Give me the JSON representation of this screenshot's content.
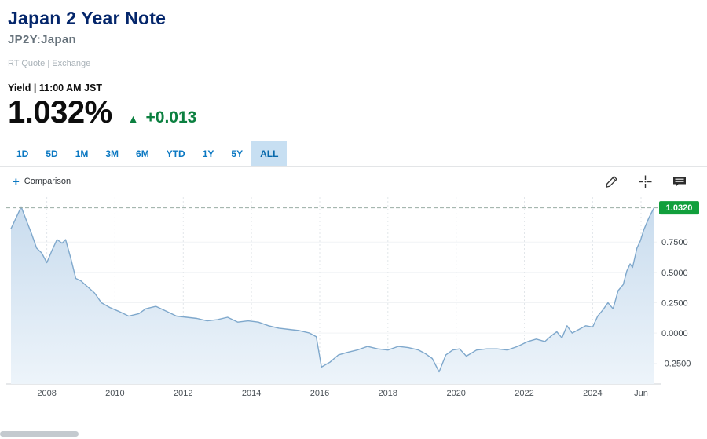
{
  "header": {
    "title": "Japan 2 Year Note",
    "symbol": "JP2Y:Japan",
    "rt_quote": "RT Quote | Exchange",
    "field_label": "Yield | 11:00 AM JST",
    "value": "1.032%",
    "change": "+0.013",
    "direction": "up",
    "up_triangle": "▲"
  },
  "colors": {
    "title_navy": "#04266b",
    "up_green": "#0c8040",
    "tab_blue": "#0b78c2",
    "active_tab_bg": "#c7dff2"
  },
  "range_tabs": {
    "items": [
      "1D",
      "5D",
      "1M",
      "3M",
      "6M",
      "YTD",
      "1Y",
      "5Y",
      "ALL"
    ],
    "active": "ALL"
  },
  "chart_toolbar": {
    "comparison_plus": "+",
    "comparison_label": "Comparison",
    "icons": [
      "draw-icon",
      "crosshair-icon",
      "annotation-icon"
    ]
  },
  "chart_data": {
    "type": "area",
    "series_name": "Japan 2 Year Note yield (%)",
    "x": [
      2006.95,
      2007.1,
      2007.25,
      2007.4,
      2007.55,
      2007.7,
      2007.85,
      2008.0,
      2008.15,
      2008.3,
      2008.45,
      2008.55,
      2008.7,
      2008.85,
      2009.0,
      2009.2,
      2009.4,
      2009.6,
      2009.85,
      2010.1,
      2010.4,
      2010.7,
      2010.9,
      2011.2,
      2011.5,
      2011.8,
      2012.1,
      2012.4,
      2012.7,
      2013.0,
      2013.3,
      2013.6,
      2013.9,
      2014.2,
      2014.5,
      2014.8,
      2015.1,
      2015.4,
      2015.7,
      2015.9,
      2016.05,
      2016.3,
      2016.55,
      2016.8,
      2017.1,
      2017.4,
      2017.7,
      2018.0,
      2018.3,
      2018.6,
      2018.9,
      2019.1,
      2019.3,
      2019.5,
      2019.7,
      2019.9,
      2020.1,
      2020.3,
      2020.6,
      2020.9,
      2021.2,
      2021.5,
      2021.8,
      2022.1,
      2022.35,
      2022.6,
      2022.8,
      2022.95,
      2023.1,
      2023.25,
      2023.4,
      2023.6,
      2023.8,
      2024.0,
      2024.15,
      2024.3,
      2024.45,
      2024.6,
      2024.75,
      2024.9,
      2025.0,
      2025.1,
      2025.17,
      2025.3,
      2025.4,
      2025.5,
      2025.65,
      2025.8
    ],
    "values": [
      0.86,
      0.95,
      1.04,
      0.93,
      0.82,
      0.7,
      0.66,
      0.58,
      0.68,
      0.77,
      0.74,
      0.77,
      0.62,
      0.45,
      0.43,
      0.38,
      0.33,
      0.25,
      0.21,
      0.18,
      0.14,
      0.16,
      0.2,
      0.22,
      0.18,
      0.14,
      0.13,
      0.12,
      0.1,
      0.11,
      0.13,
      0.09,
      0.1,
      0.09,
      0.06,
      0.04,
      0.03,
      0.02,
      0.0,
      -0.03,
      -0.28,
      -0.24,
      -0.18,
      -0.16,
      -0.14,
      -0.11,
      -0.13,
      -0.14,
      -0.11,
      -0.12,
      -0.14,
      -0.17,
      -0.21,
      -0.32,
      -0.18,
      -0.14,
      -0.13,
      -0.19,
      -0.14,
      -0.13,
      -0.13,
      -0.14,
      -0.11,
      -0.07,
      -0.05,
      -0.07,
      -0.02,
      0.01,
      -0.04,
      0.06,
      0.0,
      0.03,
      0.06,
      0.05,
      0.14,
      0.19,
      0.25,
      0.2,
      0.35,
      0.4,
      0.51,
      0.57,
      0.54,
      0.7,
      0.76,
      0.85,
      0.95,
      1.032
    ],
    "xlim": [
      2006.95,
      2025.88
    ],
    "ylim": [
      -0.42,
      1.12
    ],
    "xticks": [
      2008,
      2010,
      2012,
      2014,
      2016,
      2018,
      2020,
      2022,
      2024,
      2025.42
    ],
    "xtick_labels": [
      "2008",
      "2010",
      "2012",
      "2014",
      "2016",
      "2018",
      "2020",
      "2022",
      "2024",
      "Jun"
    ],
    "yticks": [
      0.75,
      0.5,
      0.25,
      0.0,
      -0.25
    ],
    "ytick_labels": [
      "0.7500",
      "0.5000",
      "0.2500",
      "0.0000",
      "-0.2500"
    ],
    "current_value": 1.032,
    "current_label": "1.0320",
    "line_color": "#7fa8cc",
    "fill_top": "#c9dcee",
    "fill_bottom": "#edf4fa",
    "dashed_color": "#9aada4",
    "label_bg": "#119f3c",
    "grid_color": "#e2e6ea",
    "legend_position": "none",
    "grid": "vertical-dotted"
  }
}
